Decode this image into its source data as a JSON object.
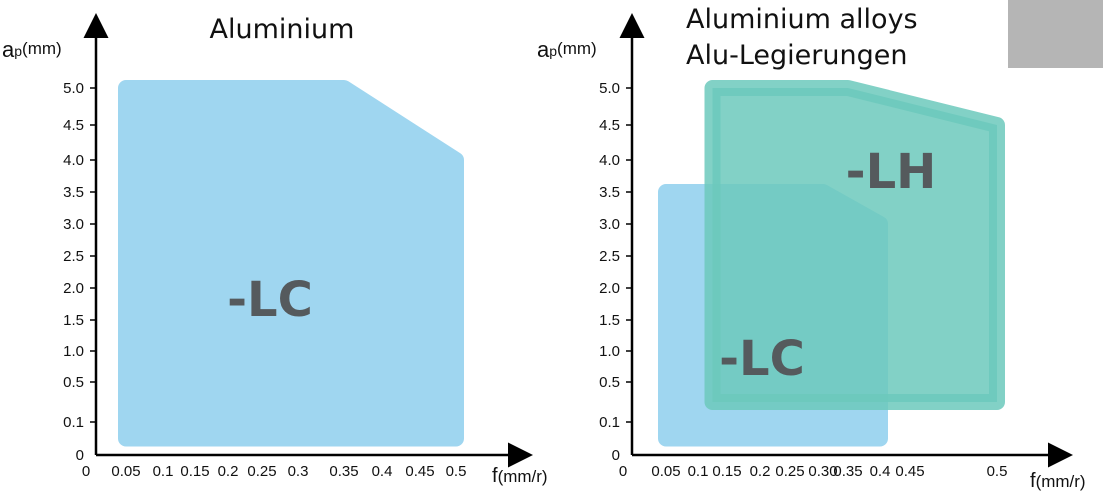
{
  "colors": {
    "lc_fill": "#9fd6f0",
    "lh_fill": "#6cc9bc",
    "overlap_fill": "#4dbfbf",
    "label_text": "#555a5d",
    "corner_tab": "#b5b5b5"
  },
  "chart_data": [
    {
      "type": "area",
      "title": "Aluminium",
      "ylabel": {
        "main": "a",
        "sub": "p",
        "unit": "(mm)"
      },
      "xlabel": {
        "main": "f",
        "unit": "(mm/r)"
      },
      "x_ticks": [
        "0",
        "0.05",
        "0.1",
        "0.15",
        "0.2",
        "0.25",
        "0.3",
        "0.35",
        "0.4",
        "0.45",
        "0.5"
      ],
      "y_ticks": [
        "0",
        "0.1",
        "0.5",
        "1.0",
        "1.5",
        "2.0",
        "2.5",
        "3.0",
        "3.5",
        "4.0",
        "4.5",
        "5.0"
      ],
      "grid": false,
      "regions": [
        {
          "label": "-LC",
          "polygon": [
            [
              0.05,
              0.05
            ],
            [
              0.5,
              0.05
            ],
            [
              0.5,
              4.0
            ],
            [
              0.35,
              5.0
            ],
            [
              0.05,
              5.0
            ]
          ]
        }
      ]
    },
    {
      "type": "area",
      "title_lines": [
        "Aluminium alloys",
        "Alu-Legierungen"
      ],
      "ylabel": {
        "main": "a",
        "sub": "p",
        "unit": "(mm)"
      },
      "xlabel": {
        "main": "f",
        "unit": "(mm/r)"
      },
      "x_ticks": [
        "0",
        "0.05",
        "0.1",
        "0.15",
        "0.2",
        "0.25",
        "0.30",
        "0.35",
        "0.4",
        "0.45",
        "0.5"
      ],
      "y_ticks": [
        "0",
        "0.1",
        "0.5",
        "1.0",
        "1.5",
        "2.0",
        "2.5",
        "3.0",
        "3.5",
        "4.0",
        "4.5",
        "5.0"
      ],
      "grid": false,
      "regions": [
        {
          "label": "-LC",
          "polygon": [
            [
              0.05,
              0.05
            ],
            [
              0.4,
              0.05
            ],
            [
              0.4,
              3.0
            ],
            [
              0.3,
              3.5
            ],
            [
              0.05,
              3.5
            ]
          ]
        },
        {
          "label": "-LH",
          "polygon": [
            [
              0.125,
              0.3
            ],
            [
              0.5,
              0.3
            ],
            [
              0.5,
              4.5
            ],
            [
              0.35,
              5.0
            ],
            [
              0.125,
              5.0
            ]
          ]
        }
      ]
    }
  ]
}
